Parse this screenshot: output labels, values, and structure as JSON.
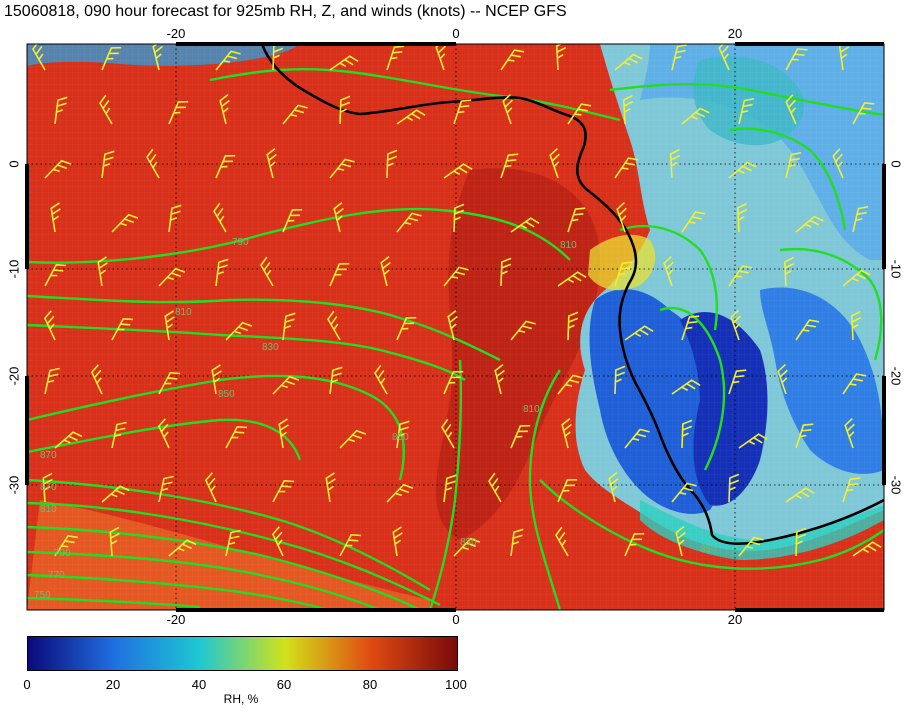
{
  "title": "15060818, 090 hour forecast for 925mb RH, Z, and winds (knots) -- NCEP GFS",
  "map": {
    "lon_ticks": [
      "-20",
      "0",
      "20"
    ],
    "lat_ticks": [
      "0",
      "-10",
      "-20",
      "-30"
    ],
    "contour_labels": [
      "790",
      "810",
      "830",
      "850",
      "870",
      "850",
      "870",
      "810",
      "790",
      "770",
      "750",
      "810",
      "830",
      "850",
      "810"
    ]
  },
  "colorbar": {
    "label": "RH, %",
    "ticks": [
      "0",
      "20",
      "40",
      "60",
      "80",
      "100"
    ],
    "colors": [
      "#0a0a7a",
      "#1f6fe0",
      "#1ec8d2",
      "#d2e21a",
      "#e04a12",
      "#7a0a0a"
    ]
  }
}
